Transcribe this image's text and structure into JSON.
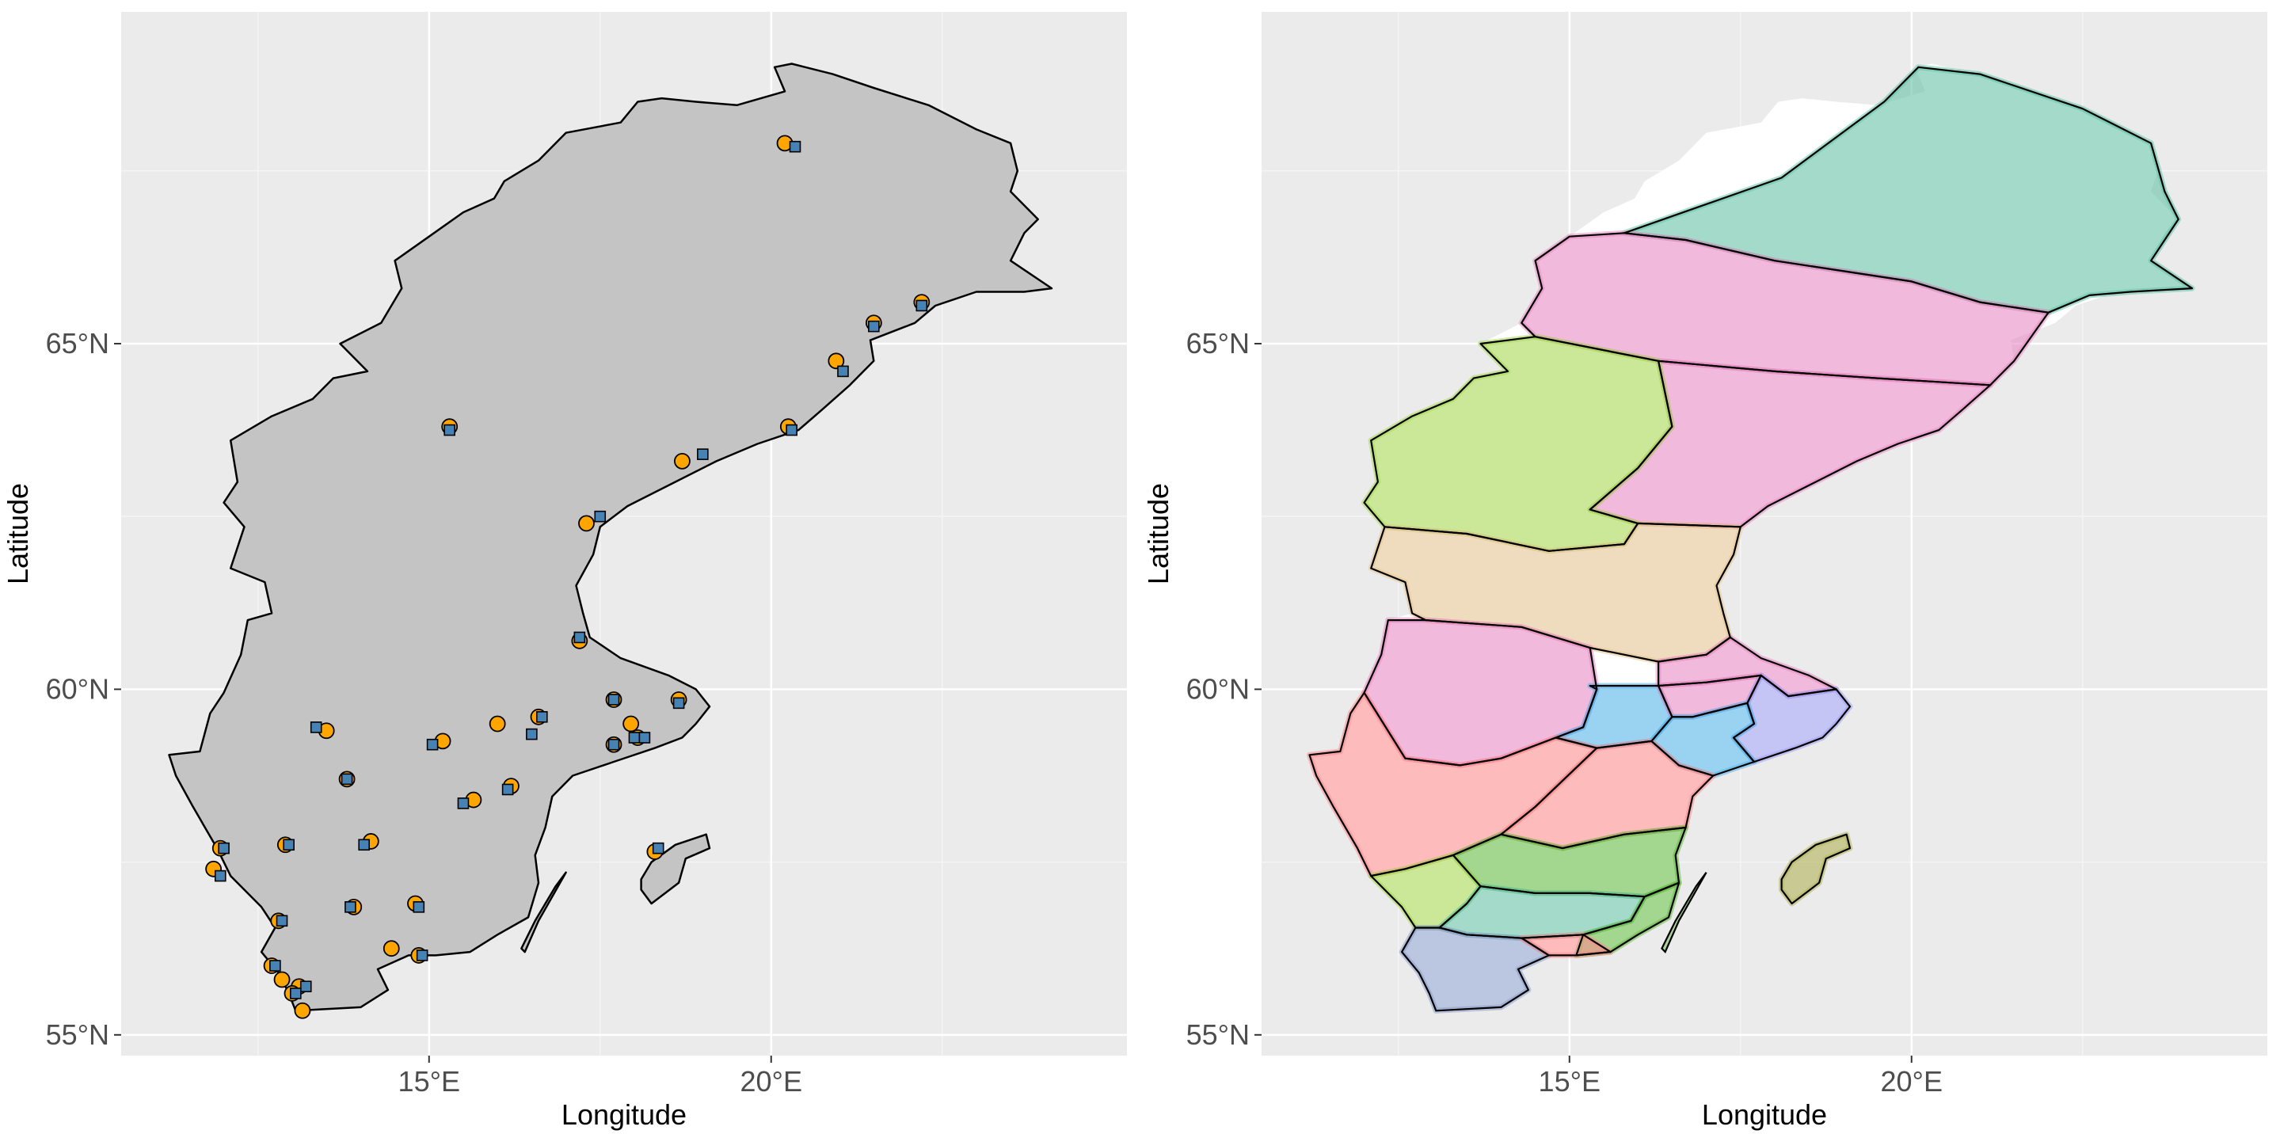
{
  "figure": {
    "panels": [
      {
        "id": "left",
        "xlabel": "Longitude",
        "ylabel": "Latitude",
        "x_ticks": [
          "15°E",
          "20°E"
        ],
        "y_ticks": [
          "55°N",
          "60°N",
          "65°N"
        ]
      },
      {
        "id": "right",
        "xlabel": "Longitude",
        "ylabel": "Latitude",
        "x_ticks": [
          "15°E",
          "20°E"
        ],
        "y_ticks": [
          "55°N",
          "60°N",
          "65°N"
        ]
      }
    ]
  },
  "map": {
    "x_range_deg": [
      10.5,
      25.2
    ],
    "y_range_deg": [
      54.7,
      69.8
    ],
    "x_tick_values": [
      15,
      20
    ],
    "y_tick_values": [
      55,
      60,
      65
    ],
    "background": "#ebebeb",
    "grid_major": "#ffffff",
    "land_fill": "#c4c4c4",
    "outline": "#000000",
    "circle_color": "#ffa500",
    "square_color": "#4682b4"
  },
  "chart_data": [
    {
      "type": "scatter",
      "panel": "left",
      "xlabel": "Longitude",
      "ylabel": "Latitude",
      "series": [
        {
          "marker": "circle",
          "color": "#ffa500",
          "points": [
            [
              20.2,
              67.9
            ],
            [
              22.2,
              65.6
            ],
            [
              21.5,
              65.3
            ],
            [
              20.95,
              64.75
            ],
            [
              20.25,
              63.8
            ],
            [
              15.3,
              63.8
            ],
            [
              18.7,
              63.3
            ],
            [
              17.3,
              62.4
            ],
            [
              17.2,
              60.7
            ],
            [
              17.7,
              59.85
            ],
            [
              18.65,
              59.85
            ],
            [
              16.6,
              59.6
            ],
            [
              16.0,
              59.5
            ],
            [
              13.5,
              59.4
            ],
            [
              17.95,
              59.5
            ],
            [
              18.05,
              59.3
            ],
            [
              17.7,
              59.2
            ],
            [
              15.2,
              59.25
            ],
            [
              16.2,
              58.6
            ],
            [
              15.65,
              58.4
            ],
            [
              13.8,
              58.7
            ],
            [
              11.95,
              57.7
            ],
            [
              12.9,
              57.75
            ],
            [
              14.15,
              57.8
            ],
            [
              18.3,
              57.65
            ],
            [
              11.85,
              57.4
            ],
            [
              13.9,
              56.85
            ],
            [
              14.8,
              56.9
            ],
            [
              12.8,
              56.65
            ],
            [
              14.45,
              56.25
            ],
            [
              14.85,
              56.15
            ],
            [
              12.7,
              56.0
            ],
            [
              12.85,
              55.8
            ],
            [
              13.1,
              55.7
            ],
            [
              13.0,
              55.6
            ],
            [
              13.15,
              55.35
            ]
          ]
        },
        {
          "marker": "square",
          "color": "#4682b4",
          "points": [
            [
              20.35,
              67.85
            ],
            [
              22.2,
              65.55
            ],
            [
              21.5,
              65.25
            ],
            [
              21.05,
              64.6
            ],
            [
              20.3,
              63.75
            ],
            [
              15.3,
              63.75
            ],
            [
              19.0,
              63.4
            ],
            [
              17.5,
              62.5
            ],
            [
              17.2,
              60.75
            ],
            [
              17.7,
              59.85
            ],
            [
              18.65,
              59.8
            ],
            [
              16.65,
              59.6
            ],
            [
              13.35,
              59.45
            ],
            [
              16.5,
              59.35
            ],
            [
              17.7,
              59.2
            ],
            [
              15.05,
              59.2
            ],
            [
              18.0,
              59.3
            ],
            [
              18.15,
              59.3
            ],
            [
              16.15,
              58.55
            ],
            [
              15.5,
              58.35
            ],
            [
              13.8,
              58.7
            ],
            [
              12.0,
              57.7
            ],
            [
              12.95,
              57.75
            ],
            [
              14.05,
              57.75
            ],
            [
              18.35,
              57.7
            ],
            [
              11.95,
              57.3
            ],
            [
              13.85,
              56.85
            ],
            [
              14.85,
              56.85
            ],
            [
              12.85,
              56.65
            ],
            [
              14.9,
              56.15
            ],
            [
              12.75,
              56.0
            ],
            [
              13.2,
              55.7
            ],
            [
              13.05,
              55.6
            ]
          ]
        }
      ]
    },
    {
      "type": "choropleth",
      "panel": "right",
      "xlabel": "Longitude",
      "ylabel": "Latitude",
      "regions": [
        {
          "color": "#66c2a5"
        },
        {
          "color": "#e78ac3"
        },
        {
          "color": "#e78ac3"
        },
        {
          "color": "#a6d854"
        },
        {
          "color": "#e5c494"
        },
        {
          "color": "#e78ac3"
        },
        {
          "color": "#56b4e9"
        },
        {
          "color": "#e78ac3"
        },
        {
          "color": "#e78ac3"
        },
        {
          "color": "#9f9fef"
        },
        {
          "color": "#56b4e9"
        },
        {
          "color": "#fc8d8d"
        },
        {
          "color": "#fc8d8d"
        },
        {
          "color": "#66bb44"
        },
        {
          "color": "#a6d854"
        },
        {
          "color": "#66c2a5"
        },
        {
          "color": "#66bb44"
        },
        {
          "color": "#8da0cb"
        },
        {
          "color": "#fc8d8d"
        },
        {
          "color": "#b3b35a"
        }
      ]
    }
  ]
}
